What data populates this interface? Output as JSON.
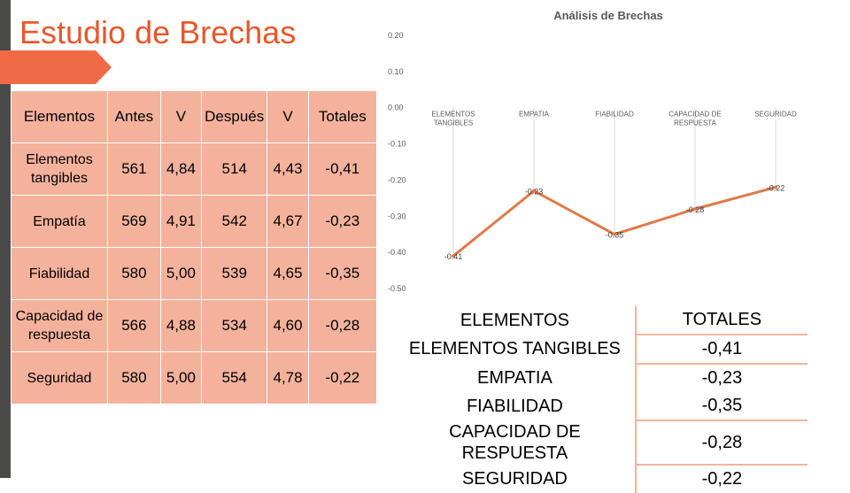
{
  "title": "Estudio de Brechas",
  "table": {
    "headers": [
      "Elementos",
      "Antes",
      "V",
      "Después",
      "V",
      "Totales"
    ],
    "rows": [
      {
        "name": "Elementos tangibles",
        "antes": "561",
        "v1": "4,84",
        "despues": "514",
        "v2": "4,43",
        "total": "-0,41"
      },
      {
        "name": "Empatía",
        "antes": "569",
        "v1": "4,91",
        "despues": "542",
        "v2": "4,67",
        "total": "-0,23"
      },
      {
        "name": "Fiabilidad",
        "antes": "580",
        "v1": "5,00",
        "despues": "539",
        "v2": "4,65",
        "total": "-0,35"
      },
      {
        "name": "Capacidad de respuesta",
        "antes": "566",
        "v1": "4,88",
        "despues": "534",
        "v2": "4,60",
        "total": "-0,28"
      },
      {
        "name": "Seguridad",
        "antes": "580",
        "v1": "5,00",
        "despues": "554",
        "v2": "4,78",
        "total": "-0,22"
      }
    ]
  },
  "chart_data": {
    "type": "line",
    "title": "Análisis de Brechas",
    "categories": [
      "ELEMENTOS TANGIBLES",
      "EMPATIA",
      "FIABILIDAD",
      "CAPACIDAD DE RESPUESTA",
      "SEGURIDAD"
    ],
    "values": [
      -0.41,
      -0.23,
      -0.35,
      -0.28,
      -0.22
    ],
    "data_labels": [
      "-0.41",
      "-0.23",
      "-0.35",
      "-0.28",
      "-0.22"
    ],
    "yticks": [
      "0.20",
      "0.10",
      "0.00",
      "-0.10",
      "-0.20",
      "-0.30",
      "-0.40",
      "-0.50"
    ],
    "ylim": [
      -0.5,
      0.2
    ],
    "grid": false,
    "line_color": "#e07a4a"
  },
  "summary": {
    "header": [
      "ELEMENTOS",
      "TOTALES"
    ],
    "rows": [
      {
        "name": "ELEMENTOS TANGIBLES",
        "value": "-0,41"
      },
      {
        "name": "EMPATIA",
        "value": "-0,23"
      },
      {
        "name": "FIABILIDAD",
        "value": "-0,35"
      },
      {
        "name": "CAPACIDAD DE RESPUESTA",
        "value": "-0,28"
      },
      {
        "name": "SEGURIDAD",
        "value": "-0,22"
      }
    ]
  }
}
